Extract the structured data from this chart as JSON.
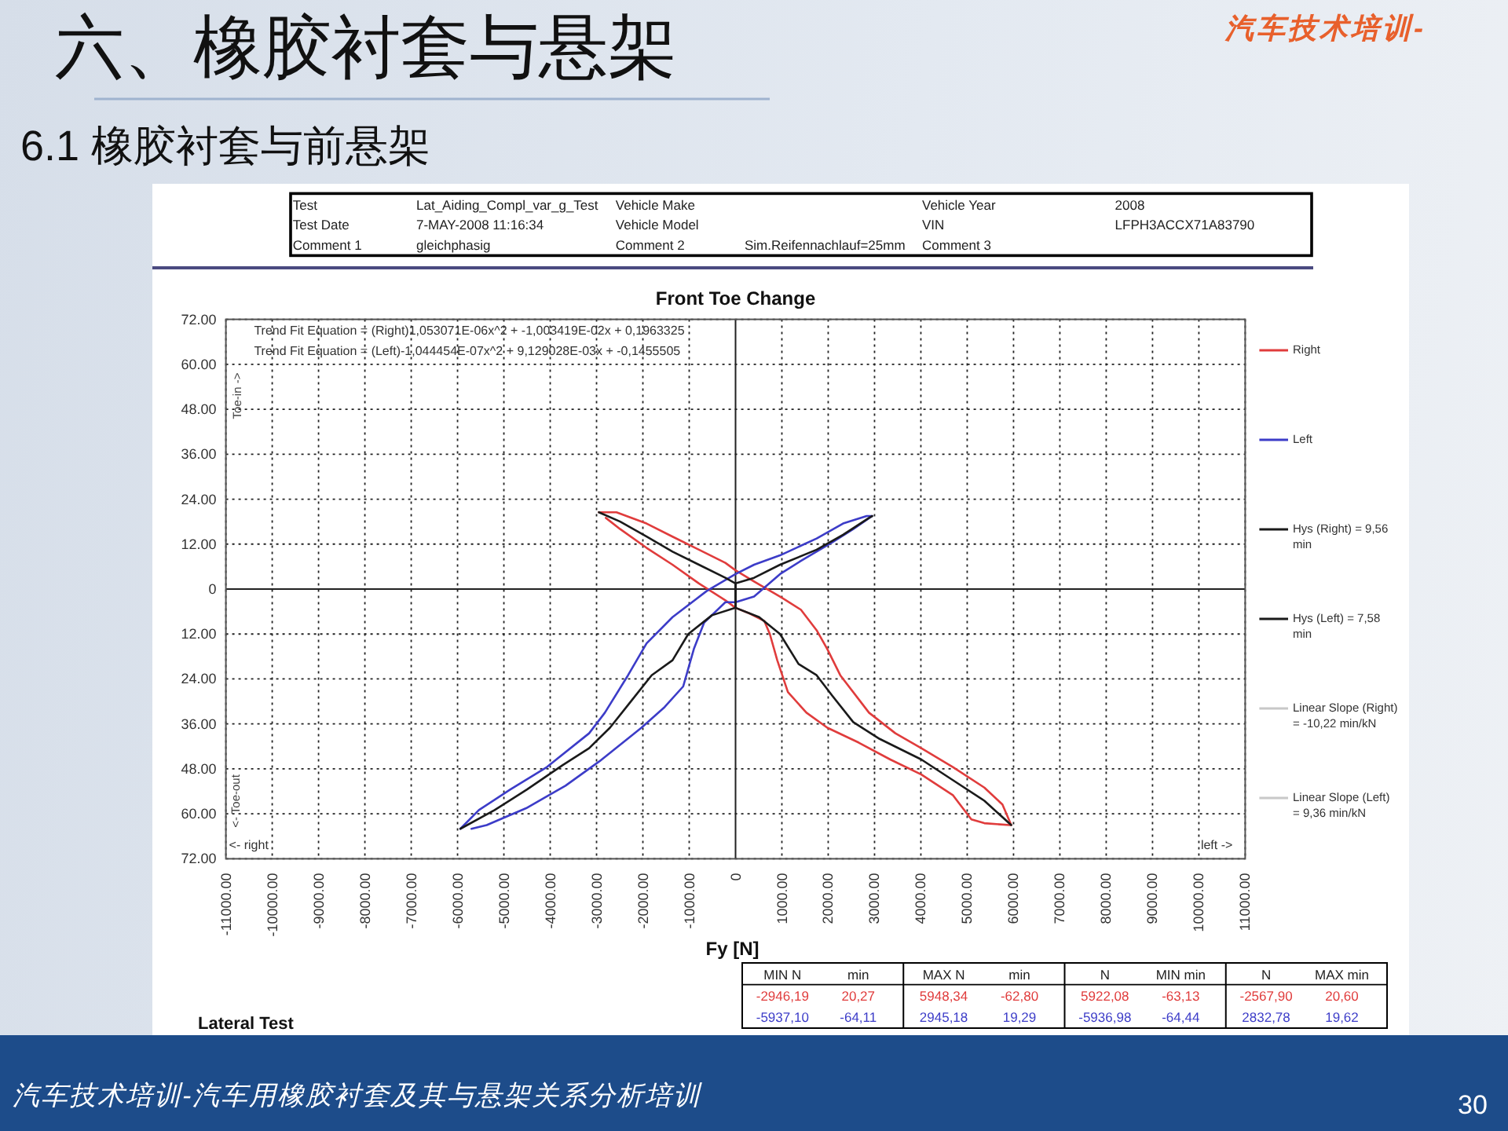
{
  "chart_data": {
    "type": "line",
    "title": "Front Toe Change",
    "xlabel": "Fy [N]",
    "xlim": [
      -11000,
      11000
    ],
    "ylim": [
      -72,
      72
    ],
    "xticks": [
      {
        "value": -11000,
        "label": "-11000.00"
      },
      {
        "value": -10000,
        "label": "-10000.00"
      },
      {
        "value": -9000,
        "label": "-9000.00"
      },
      {
        "value": -8000,
        "label": "-8000.00"
      },
      {
        "value": -7000,
        "label": "-7000.00"
      },
      {
        "value": -6000,
        "label": "-6000.00"
      },
      {
        "value": -5000,
        "label": "-5000.00"
      },
      {
        "value": -4000,
        "label": "-4000.00"
      },
      {
        "value": -3000,
        "label": "-3000.00"
      },
      {
        "value": -2000,
        "label": "-2000.00"
      },
      {
        "value": -1000,
        "label": "-1000.00"
      },
      0,
      {
        "value": 1000,
        "label": "1000.00"
      },
      {
        "value": 2000,
        "label": "2000.00"
      },
      {
        "value": 3000,
        "label": "3000.00"
      },
      {
        "value": 4000,
        "label": "4000.00"
      },
      {
        "value": 5000,
        "label": "5000.00"
      },
      {
        "value": 6000,
        "label": "6000.00"
      },
      {
        "value": 7000,
        "label": "7000.00"
      },
      {
        "value": 8000,
        "label": "8000.00"
      },
      {
        "value": 9000,
        "label": "9000.00"
      },
      {
        "value": 10000,
        "label": "10000.00"
      },
      {
        "value": 11000,
        "label": "11000.00"
      }
    ],
    "yticks": [
      {
        "value": -72,
        "label": "72.00"
      },
      {
        "value": -60,
        "label": "60.00"
      },
      {
        "value": -48,
        "label": "48.00"
      },
      {
        "value": -36,
        "label": "36.00"
      },
      {
        "value": -24,
        "label": "24.00"
      },
      {
        "value": -12,
        "label": "12.00"
      },
      0,
      {
        "value": 12,
        "label": "12.00"
      },
      {
        "value": 24,
        "label": "24.00"
      },
      {
        "value": 36,
        "label": "36.00"
      },
      {
        "value": 48,
        "label": "48.00"
      },
      {
        "value": 60,
        "label": "60.00"
      },
      {
        "value": 72,
        "label": "72.00"
      }
    ],
    "grid": true,
    "legend": "right",
    "series": [
      {
        "name": "Right",
        "color": "#e03c3c",
        "x": [
          -2950,
          -2570,
          -1920,
          -1360,
          -790,
          -220,
          0,
          400,
          960,
          1410,
          1750,
          1980,
          2260,
          2880,
          3450,
          4010,
          4690,
          5370,
          5760,
          5950,
          5920,
          5370,
          5090,
          4690,
          4010,
          3340,
          2660,
          1980,
          1530,
          1130,
          900,
          740,
          620,
          300,
          0,
          -220,
          -790,
          -1360,
          -1920,
          -2490,
          -2800
        ],
        "values": [
          20.5,
          20.5,
          17.5,
          14,
          10.5,
          7,
          5,
          2,
          -2,
          -5.5,
          -11,
          -16,
          -23,
          -33,
          -38.5,
          -42.5,
          -47.5,
          -53,
          -57.5,
          -63,
          -63,
          -62.5,
          -61.5,
          -55,
          -49.5,
          -45.5,
          -41,
          -37,
          -33,
          -27.5,
          -19,
          -12,
          -8.5,
          -6.5,
          -5,
          -3,
          1.5,
          6.5,
          11,
          16,
          19
        ]
      },
      {
        "name": "Left",
        "color": "#3c3cc8",
        "x": [
          -5940,
          -5540,
          -4860,
          -4070,
          -3160,
          -2820,
          -2320,
          -1920,
          -1360,
          -620,
          0,
          400,
          960,
          1750,
          2320,
          2830,
          2950,
          2540,
          2090,
          1410,
          960,
          400,
          0,
          -220,
          -680,
          -900,
          -1130,
          -1530,
          -2030,
          -2940,
          -3670,
          -4520,
          -5370,
          -5700
        ],
        "values": [
          -64,
          -59,
          -53.5,
          -47.5,
          -38.5,
          -33,
          -23,
          -14.5,
          -7.5,
          -0.5,
          4,
          6.5,
          9,
          13.5,
          17.5,
          19.5,
          19.5,
          16,
          12.5,
          7.5,
          4,
          -2,
          -3.5,
          -3.5,
          -9,
          -16,
          -26,
          -31.5,
          -37,
          -46,
          -52.5,
          -58.5,
          -63,
          -64
        ]
      },
      {
        "name": "Hys (Right) = 9,56 min",
        "color": "#1a1a1a",
        "x": [
          -2950,
          -2490,
          -1920,
          -1360,
          -790,
          -220,
          0,
          0,
          510,
          960,
          1360,
          1750,
          2090,
          2540,
          3110,
          4010,
          4690,
          5370,
          5950
        ],
        "values": [
          20.5,
          18,
          14,
          10,
          6.5,
          3,
          1.5,
          -5,
          -7.5,
          -12,
          -20,
          -23,
          -28.5,
          -35.5,
          -40,
          -45.5,
          -51,
          -56.5,
          -63
        ]
      },
      {
        "name": "Hys (Left) = 7,58 min",
        "color": "#1a1a1a",
        "x": [
          -5940,
          -5200,
          -4500,
          -3730,
          -3160,
          -2710,
          -2260,
          -1810,
          -1360,
          -1020,
          -510,
          0,
          0,
          400,
          960,
          1750,
          2320,
          2880,
          2950
        ],
        "values": [
          -64,
          -59,
          -53.5,
          -47,
          -42.5,
          -37,
          -30,
          -23,
          -19,
          -12,
          -7,
          -5,
          1.5,
          3,
          6.5,
          10.5,
          14.5,
          19,
          19.5
        ]
      },
      {
        "name": "Linear Slope (Right) = -10,22 min/kN",
        "color": "#c8c8c8"
      },
      {
        "name": "Linear Slope (Left) = 9,36 min/kN",
        "color": "#c8c8c8"
      }
    ],
    "annotations": [
      "汽车技术培训-",
      "六、橡胶衬套与悬架",
      "6.1 橡胶衬套与前悬架",
      "Test",
      "Lat_Aiding_Compl_var_g_Test",
      "Vehicle Make",
      "Vehicle Year",
      "2008",
      "Test Date",
      "7-MAY-2008 11:16:34",
      "Vehicle Model",
      "VIN",
      "LFPH3ACCX71A83790",
      "Comment 1",
      "gleichphasig",
      "Comment 2",
      "Sim.Reifennachlauf=25mm",
      "Comment 3",
      "Trend Fit Equation = (Right)1,053071E-06x^2 + -1,003419E-02x + 0,1963325",
      "Trend Fit Equation = (Left)-1,044454E-07x^2 + 9,129028E-03x + -0,1455505",
      "Toe-in ->",
      "<- Toe-out",
      "<- right",
      "left ->",
      "MIN N",
      "min",
      "MAX N",
      "min",
      "N",
      "MIN min",
      "N",
      "MAX min",
      "-2946,19",
      "20,27",
      "5948,34",
      "-62,80",
      "5922,08",
      "-63,13",
      "-2567,90",
      "20,60",
      "-5937,10",
      "-64,11",
      "2945,18",
      "19,29",
      "-5936,98",
      "-64,44",
      "2832,78",
      "19,62",
      "Lateral Test",
      "汽车技术培训-汽车用橡胶衬套及其与悬架关系分析培训",
      "30"
    ]
  }
}
